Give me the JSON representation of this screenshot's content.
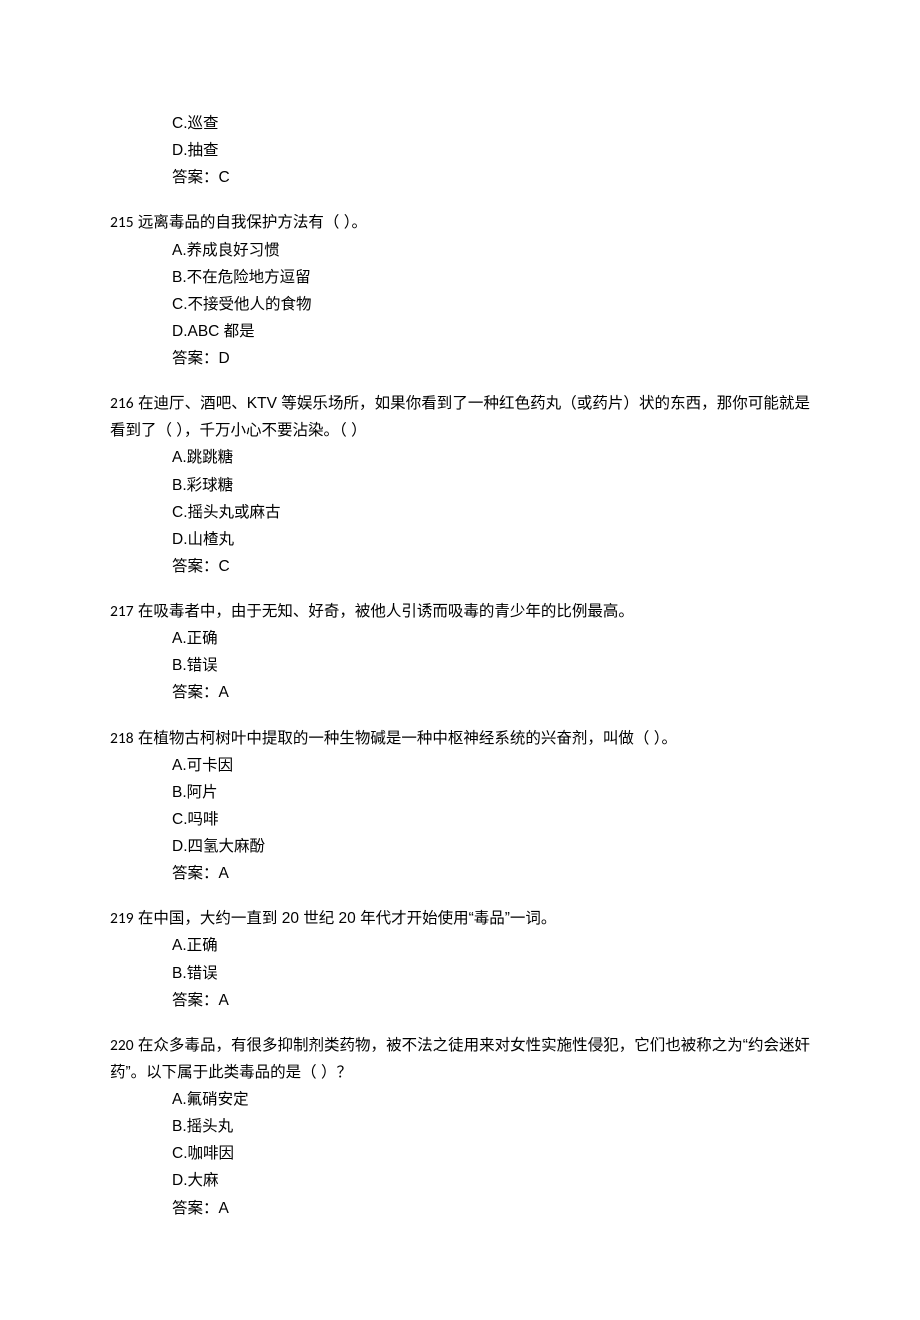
{
  "fragment": {
    "options": [
      "C.巡查",
      "D.抽查"
    ],
    "answer": "答案：C"
  },
  "questions": [
    {
      "num": "215",
      "text": "远离毒品的自我保护方法有（  ）。",
      "options": [
        "A.养成良好习惯",
        "B.不在危险地方逗留",
        "C.不接受他人的食物",
        "D.ABC 都是"
      ],
      "answer": "答案：D"
    },
    {
      "num": "216",
      "text": "在迪厅、酒吧、KTV 等娱乐场所，如果你看到了一种红色药丸（或药片）状的东西，那你可能就是看到了（  ），千万小心不要沾染。（  ）",
      "options": [
        "A.跳跳糖",
        "B.彩球糖",
        "C.摇头丸或麻古",
        "D.山楂丸"
      ],
      "answer": "答案：C"
    },
    {
      "num": "217",
      "text": "在吸毒者中，由于无知、好奇，被他人引诱而吸毒的青少年的比例最高。",
      "options": [
        "A.正确",
        "B.错误"
      ],
      "answer": "答案：A"
    },
    {
      "num": "218",
      "text": "在植物古柯树叶中提取的一种生物碱是一种中枢神经系统的兴奋剂，叫做（  ）。",
      "options": [
        "A.可卡因",
        "B.阿片",
        "C.吗啡",
        "D.四氢大麻酚"
      ],
      "answer": "答案：A"
    },
    {
      "num": "219",
      "text": "在中国，大约一直到 20 世纪 20 年代才开始使用“毒品”一词。",
      "options": [
        "A.正确",
        "B.错误"
      ],
      "answer": "答案：A"
    },
    {
      "num": "220",
      "text": "在众多毒品，有很多抑制剂类药物，被不法之徒用来对女性实施性侵犯，它们也被称之为“约会迷奸药”。以下属于此类毒品的是（  ）？",
      "options": [
        "A.氟硝安定",
        "B.摇头丸",
        "C.咖啡因",
        "D.大麻"
      ],
      "answer": "答案：A"
    }
  ]
}
